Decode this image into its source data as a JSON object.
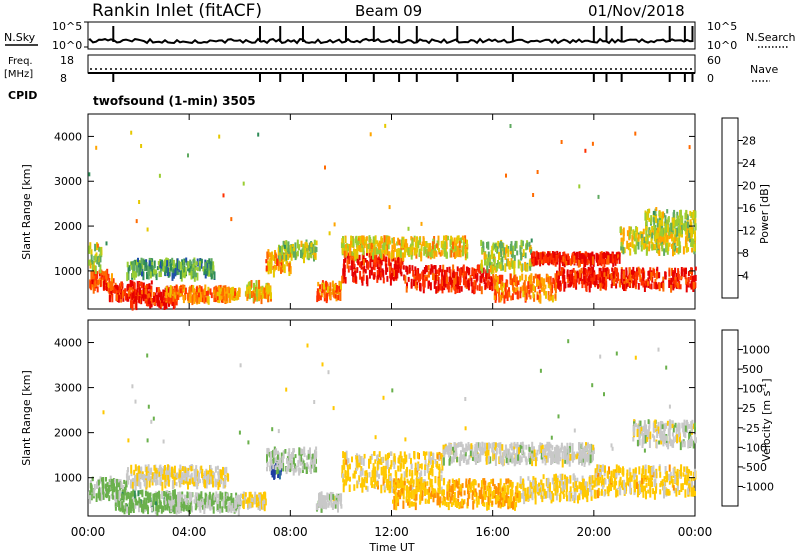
{
  "header": {
    "title": "Rankin Inlet (fitACF)",
    "beam": "Beam 09",
    "date": "01/Nov/2018"
  },
  "params": {
    "nsky_label": "N.Sky",
    "nsky_top": "10^5",
    "nsky_bottom": "10^0",
    "nsearch_label": "N.Search",
    "nsearch_top": "10^5",
    "nsearch_bottom": "10^0",
    "freq_label": "Freq.",
    "freq_unit": "[MHz]",
    "freq_top": "18",
    "freq_bottom": "8",
    "nave_label": "Nave",
    "nave_top": "60",
    "nave_bottom": "0",
    "cpid_label": "CPID",
    "program": "twofsound (1-min) 3505"
  },
  "axes": {
    "ylabel": "Slant Range [km]",
    "xlabel": "Time UT",
    "yticks": [
      "1000",
      "2000",
      "3000",
      "4000"
    ],
    "xticks": [
      "00:00",
      "04:00",
      "08:00",
      "12:00",
      "16:00",
      "20:00",
      "00:00"
    ]
  },
  "power_bar": {
    "label": "Power [dB]",
    "ticks": [
      "4",
      "8",
      "12",
      "16",
      "20",
      "24",
      "28"
    ],
    "colors": [
      "#0000ff",
      "#1e50a8",
      "#2e8b57",
      "#5faa60",
      "#9acd32",
      "#e6c800",
      "#ffa500",
      "#ff6a00",
      "#ff3000",
      "#e60000"
    ]
  },
  "velocity_bar": {
    "label": "Velocity [m s",
    "label_sup": "-1",
    "label_end": "]",
    "ticks": [
      "1000",
      "500",
      "100",
      "25",
      "-25",
      "-100",
      "-500",
      "-1000"
    ],
    "colors": [
      "#1e3ca0",
      "#2a6e9e",
      "#2e8b57",
      "#6ab04c",
      "#c8c8c8",
      "#ffc800",
      "#ff9000",
      "#ff5a00",
      "#e60000"
    ]
  },
  "chart_data": [
    {
      "type": "heatmap",
      "name": "",
      "quantity": "Power",
      "unit": "dB",
      "x_unit": "hours UT",
      "xlim": [
        0,
        24
      ],
      "ylim": [
        150,
        4500
      ],
      "ylabel": "Slant Range [km]",
      "xlabel": "Time UT",
      "color_range": [
        0,
        30
      ],
      "regions": [
        {
          "t0": 0.0,
          "t1": 1.0,
          "r0": 650,
          "r1": 1050,
          "level": 24
        },
        {
          "t0": 0.0,
          "t1": 0.5,
          "r0": 1100,
          "r1": 1650,
          "level": 14
        },
        {
          "t0": 0.8,
          "t1": 2.5,
          "r0": 450,
          "r1": 800,
          "level": 26
        },
        {
          "t0": 1.5,
          "t1": 3.5,
          "r0": 300,
          "r1": 650,
          "level": 27
        },
        {
          "t0": 1.5,
          "t1": 5.0,
          "r0": 950,
          "r1": 1300,
          "level": 10
        },
        {
          "t0": 3.0,
          "t1": 5.5,
          "r0": 400,
          "r1": 700,
          "level": 22
        },
        {
          "t0": 5.0,
          "t1": 6.0,
          "r0": 450,
          "r1": 650,
          "level": 20
        },
        {
          "t0": 6.2,
          "t1": 7.2,
          "r0": 450,
          "r1": 800,
          "level": 18
        },
        {
          "t0": 7.0,
          "t1": 8.0,
          "r0": 1050,
          "r1": 1500,
          "level": 20
        },
        {
          "t0": 7.5,
          "t1": 9.0,
          "r0": 1350,
          "r1": 1700,
          "level": 14
        },
        {
          "t0": 9.0,
          "t1": 10.0,
          "r0": 450,
          "r1": 800,
          "level": 22
        },
        {
          "t0": 10.0,
          "t1": 12.5,
          "r0": 850,
          "r1": 1450,
          "level": 28
        },
        {
          "t0": 10.0,
          "t1": 15.0,
          "r0": 1400,
          "r1": 1800,
          "level": 17
        },
        {
          "t0": 12.5,
          "t1": 16.0,
          "r0": 650,
          "r1": 1150,
          "level": 27
        },
        {
          "t0": 16.0,
          "t1": 18.5,
          "r0": 450,
          "r1": 950,
          "level": 22
        },
        {
          "t0": 15.5,
          "t1": 17.5,
          "r0": 1100,
          "r1": 1700,
          "level": 14
        },
        {
          "t0": 17.5,
          "t1": 21.0,
          "r0": 1250,
          "r1": 1450,
          "level": 28
        },
        {
          "t0": 18.5,
          "t1": 24.0,
          "r0": 700,
          "r1": 1100,
          "level": 27
        },
        {
          "t0": 21.0,
          "t1": 24.0,
          "r0": 1500,
          "r1": 2000,
          "level": 16
        },
        {
          "t0": 22.0,
          "t1": 24.0,
          "r0": 1900,
          "r1": 2400,
          "level": 14
        }
      ]
    },
    {
      "type": "heatmap",
      "name": "",
      "quantity": "Velocity",
      "unit": "m s-1",
      "x_unit": "hours UT",
      "xlim": [
        0,
        24
      ],
      "ylim": [
        150,
        4500
      ],
      "ylabel": "Slant Range [km]",
      "xlabel": "Time UT",
      "color_range": [
        -1000,
        1000
      ],
      "regions": [
        {
          "t0": 0.0,
          "t1": 1.5,
          "r0": 600,
          "r1": 1050,
          "level": 150
        },
        {
          "t0": 1.0,
          "t1": 3.5,
          "r0": 350,
          "r1": 750,
          "level": 200
        },
        {
          "t0": 3.0,
          "t1": 6.0,
          "r0": 350,
          "r1": 700,
          "level": 120
        },
        {
          "t0": 1.5,
          "t1": 5.5,
          "r0": 900,
          "r1": 1300,
          "level": -60
        },
        {
          "t0": 6.0,
          "t1": 7.0,
          "r0": 400,
          "r1": 700,
          "level": -150
        },
        {
          "t0": 7.2,
          "t1": 7.6,
          "r0": 1100,
          "r1": 1400,
          "level": 900
        },
        {
          "t0": 7.0,
          "t1": 9.0,
          "r0": 1200,
          "r1": 1700,
          "level": 60
        },
        {
          "t0": 9.0,
          "t1": 10.0,
          "r0": 400,
          "r1": 700,
          "level": 30
        },
        {
          "t0": 10.0,
          "t1": 14.0,
          "r0": 800,
          "r1": 1600,
          "level": -200
        },
        {
          "t0": 12.0,
          "t1": 17.0,
          "r0": 450,
          "r1": 1000,
          "level": -300
        },
        {
          "t0": 14.0,
          "t1": 20.0,
          "r0": 1400,
          "r1": 1800,
          "level": 0
        },
        {
          "t0": 17.0,
          "t1": 20.0,
          "r0": 600,
          "r1": 1100,
          "level": -150
        },
        {
          "t0": 20.0,
          "t1": 24.0,
          "r0": 700,
          "r1": 1300,
          "level": -200
        },
        {
          "t0": 21.5,
          "t1": 24.0,
          "r0": 1800,
          "r1": 2300,
          "level": 0
        }
      ]
    }
  ]
}
